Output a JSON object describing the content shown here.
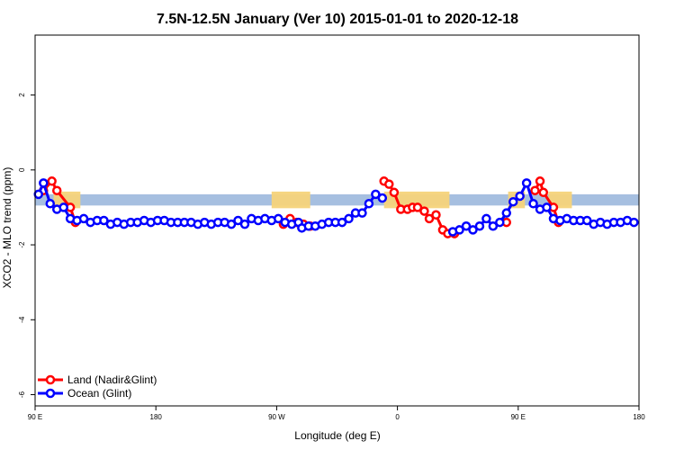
{
  "chart_data": {
    "type": "line",
    "title": "7.5N-12.5N January (Ver 10)   2015-01-01 to 2020-12-18",
    "xlabel": "Longitude (deg E)",
    "ylabel": "XCO2 - MLO trend (ppm)",
    "xlim": [
      90,
      450
    ],
    "ylim": [
      -6.3,
      3.6
    ],
    "x_ticks": [
      {
        "value": 90,
        "label": "90 E"
      },
      {
        "value": 162,
        "label": "180"
      },
      {
        "value": 234,
        "label": "90 W"
      },
      {
        "value": 306,
        "label": "0"
      },
      {
        "value": 378,
        "label": "90 E"
      },
      {
        "value": 450,
        "label": "180"
      }
    ],
    "y_ticks": [
      {
        "value": 2,
        "label": "2"
      },
      {
        "value": 0,
        "label": "0"
      },
      {
        "value": -2,
        "label": "-2"
      },
      {
        "value": -4,
        "label": "-4"
      },
      {
        "value": -6,
        "label": "-6"
      }
    ],
    "legend_position": "bottom-left",
    "band": {
      "ymin": -0.95,
      "ymax": -0.65,
      "color": "#a6bfe0"
    },
    "land_color": "#f5d37a",
    "land_regions": [
      [
        101,
        117
      ],
      [
        231,
        254
      ],
      [
        298,
        337
      ],
      [
        372,
        382
      ],
      [
        396,
        410
      ]
    ],
    "series": [
      {
        "name": "Land (Nadir&Glint)",
        "color": "#ff0000",
        "segments": [
          [
            [
              95,
              -0.55
            ],
            [
              100,
              -0.3
            ],
            [
              103,
              -0.55
            ],
            [
              111,
              -1.0
            ],
            [
              114,
              -1.4
            ]
          ],
          [
            [
              238,
              -1.45
            ],
            [
              242,
              -1.3
            ],
            [
              246,
              -1.4
            ],
            [
              250,
              -1.45
            ],
            [
              254,
              -1.5
            ]
          ],
          [
            [
              298,
              -0.3
            ],
            [
              301,
              -0.38
            ],
            [
              304,
              -0.6
            ],
            [
              308,
              -1.05
            ],
            [
              312,
              -1.05
            ],
            [
              315,
              -1.0
            ],
            [
              318,
              -1.0
            ],
            [
              322,
              -1.1
            ],
            [
              325,
              -1.3
            ],
            [
              329,
              -1.2
            ],
            [
              333,
              -1.6
            ],
            [
              336,
              -1.7
            ],
            [
              340,
              -1.7
            ]
          ],
          [
            [
              371,
              -1.4
            ]
          ],
          [
            [
              388,
              -0.55
            ],
            [
              391,
              -0.3
            ],
            [
              393,
              -0.6
            ],
            [
              399,
              -1.0
            ],
            [
              402,
              -1.4
            ]
          ]
        ]
      },
      {
        "name": "Ocean (Glint)",
        "color": "#0000ff",
        "segments": [
          [
            [
              92,
              -0.65
            ],
            [
              95,
              -0.35
            ],
            [
              99,
              -0.9
            ],
            [
              103,
              -1.05
            ],
            [
              107,
              -1.0
            ],
            [
              111,
              -1.3
            ],
            [
              115,
              -1.35
            ],
            [
              119,
              -1.3
            ],
            [
              123,
              -1.4
            ],
            [
              127,
              -1.35
            ],
            [
              131,
              -1.35
            ],
            [
              135,
              -1.45
            ],
            [
              139,
              -1.4
            ],
            [
              143,
              -1.45
            ],
            [
              147,
              -1.4
            ],
            [
              151,
              -1.4
            ],
            [
              155,
              -1.35
            ],
            [
              159,
              -1.4
            ],
            [
              163,
              -1.35
            ],
            [
              167,
              -1.35
            ],
            [
              171,
              -1.4
            ],
            [
              175,
              -1.4
            ],
            [
              179,
              -1.4
            ],
            [
              183,
              -1.4
            ],
            [
              187,
              -1.45
            ],
            [
              191,
              -1.4
            ],
            [
              195,
              -1.45
            ],
            [
              199,
              -1.4
            ],
            [
              203,
              -1.4
            ],
            [
              207,
              -1.45
            ],
            [
              211,
              -1.35
            ],
            [
              215,
              -1.45
            ],
            [
              219,
              -1.3
            ],
            [
              223,
              -1.35
            ],
            [
              227,
              -1.3
            ],
            [
              231,
              -1.35
            ],
            [
              235,
              -1.3
            ],
            [
              239,
              -1.4
            ],
            [
              243,
              -1.45
            ],
            [
              247,
              -1.4
            ],
            [
              249,
              -1.55
            ],
            [
              253,
              -1.5
            ],
            [
              257,
              -1.5
            ],
            [
              261,
              -1.45
            ],
            [
              265,
              -1.4
            ],
            [
              269,
              -1.4
            ],
            [
              273,
              -1.4
            ],
            [
              277,
              -1.3
            ],
            [
              281,
              -1.15
            ],
            [
              285,
              -1.15
            ],
            [
              289,
              -0.9
            ],
            [
              293,
              -0.65
            ],
            [
              297,
              -0.75
            ]
          ],
          [
            [
              339,
              -1.65
            ],
            [
              343,
              -1.6
            ],
            [
              347,
              -1.5
            ],
            [
              351,
              -1.6
            ],
            [
              355,
              -1.5
            ],
            [
              359,
              -1.3
            ],
            [
              363,
              -1.5
            ],
            [
              367,
              -1.4
            ],
            [
              371,
              -1.15
            ],
            [
              375,
              -0.85
            ],
            [
              379,
              -0.7
            ],
            [
              383,
              -0.35
            ],
            [
              387,
              -0.9
            ],
            [
              391,
              -1.05
            ],
            [
              395,
              -1.0
            ],
            [
              399,
              -1.3
            ],
            [
              403,
              -1.35
            ],
            [
              407,
              -1.3
            ],
            [
              411,
              -1.35
            ],
            [
              415,
              -1.35
            ],
            [
              419,
              -1.35
            ],
            [
              423,
              -1.45
            ],
            [
              427,
              -1.4
            ],
            [
              431,
              -1.45
            ],
            [
              435,
              -1.4
            ],
            [
              439,
              -1.4
            ],
            [
              443,
              -1.35
            ],
            [
              447,
              -1.4
            ]
          ]
        ]
      }
    ]
  }
}
